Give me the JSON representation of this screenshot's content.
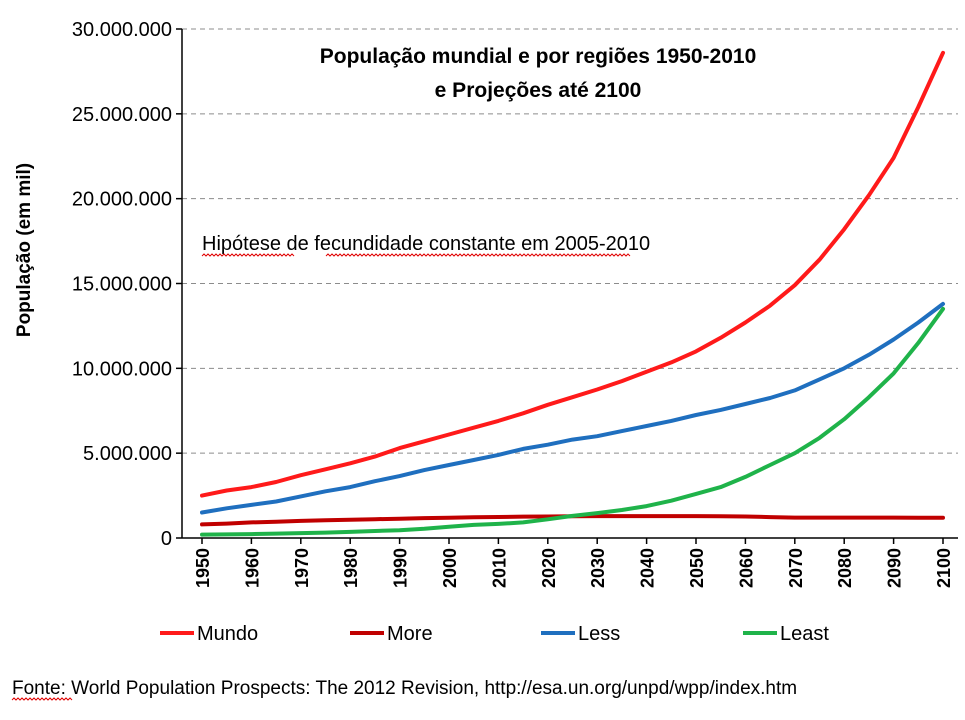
{
  "chart_data": {
    "type": "line",
    "title_lines": [
      "População mundial e por regiões 1950-2010",
      "e Projeções até 2100"
    ],
    "ylabel": "População (em mil)",
    "annotation": "Hipótese de fecundidade constante em 2005-2010",
    "source": "Fonte: World Population Prospects: The 2012 Revision, http://esa.un.org/unpd/wpp/index.htm",
    "ylim": [
      0,
      30000000
    ],
    "yticks": [
      0,
      5000000,
      10000000,
      15000000,
      20000000,
      25000000,
      30000000
    ],
    "ytick_labels": [
      "0",
      "5.000.000",
      "10.000.000",
      "15.000.000",
      "20.000.000",
      "25.000.000",
      "30.000.000"
    ],
    "xticks": [
      1950,
      1960,
      1970,
      1980,
      1990,
      2000,
      2010,
      2020,
      2030,
      2040,
      2050,
      2060,
      2070,
      2080,
      2090,
      2100
    ],
    "xtick_labels": [
      "1950",
      "1960",
      "1970",
      "1980",
      "1990",
      "2000",
      "2010",
      "2020",
      "2030",
      "2040",
      "2050",
      "2060",
      "2070",
      "2080",
      "2090",
      "2100"
    ],
    "xlim": [
      1950,
      2100
    ],
    "grid": "horizontal dashed",
    "legend_position": "bottom",
    "x": [
      1950,
      1955,
      1960,
      1965,
      1970,
      1975,
      1980,
      1985,
      1990,
      1995,
      2000,
      2005,
      2010,
      2015,
      2020,
      2025,
      2030,
      2035,
      2040,
      2045,
      2050,
      2055,
      2060,
      2065,
      2070,
      2075,
      2080,
      2085,
      2090,
      2095,
      2100
    ],
    "series": [
      {
        "name": "Mundo",
        "color": "#ff1a1a",
        "values": [
          2500000,
          2800000,
          3000000,
          3300000,
          3700000,
          4050000,
          4400000,
          4800000,
          5300000,
          5700000,
          6100000,
          6500000,
          6900000,
          7350000,
          7850000,
          8300000,
          8750000,
          9250000,
          9800000,
          10350000,
          11000000,
          11800000,
          12700000,
          13700000,
          14900000,
          16400000,
          18200000,
          20200000,
          22400000,
          25400000,
          28600000
        ]
      },
      {
        "name": "More",
        "color": "#c00000",
        "values": [
          800000,
          850000,
          920000,
          960000,
          1010000,
          1050000,
          1080000,
          1110000,
          1140000,
          1170000,
          1190000,
          1220000,
          1240000,
          1260000,
          1270000,
          1280000,
          1290000,
          1290000,
          1290000,
          1290000,
          1290000,
          1280000,
          1270000,
          1230000,
          1200000,
          1200000,
          1200000,
          1200000,
          1200000,
          1190000,
          1190000
        ]
      },
      {
        "name": "Less",
        "color": "#1f6fbf",
        "values": [
          1500000,
          1750000,
          1950000,
          2150000,
          2450000,
          2750000,
          3000000,
          3350000,
          3650000,
          4000000,
          4300000,
          4600000,
          4900000,
          5250000,
          5500000,
          5800000,
          6000000,
          6300000,
          6600000,
          6900000,
          7250000,
          7550000,
          7900000,
          8250000,
          8700000,
          9350000,
          10000000,
          10800000,
          11700000,
          12700000,
          13800000
        ]
      },
      {
        "name": "Least",
        "color": "#1fb34a",
        "values": [
          200000,
          210000,
          230000,
          260000,
          290000,
          320000,
          360000,
          410000,
          460000,
          540000,
          660000,
          770000,
          830000,
          920000,
          1100000,
          1300000,
          1470000,
          1650000,
          1880000,
          2200000,
          2600000,
          3000000,
          3600000,
          4300000,
          5000000,
          5900000,
          7000000,
          8300000,
          9700000,
          11500000,
          13500000
        ]
      }
    ]
  }
}
